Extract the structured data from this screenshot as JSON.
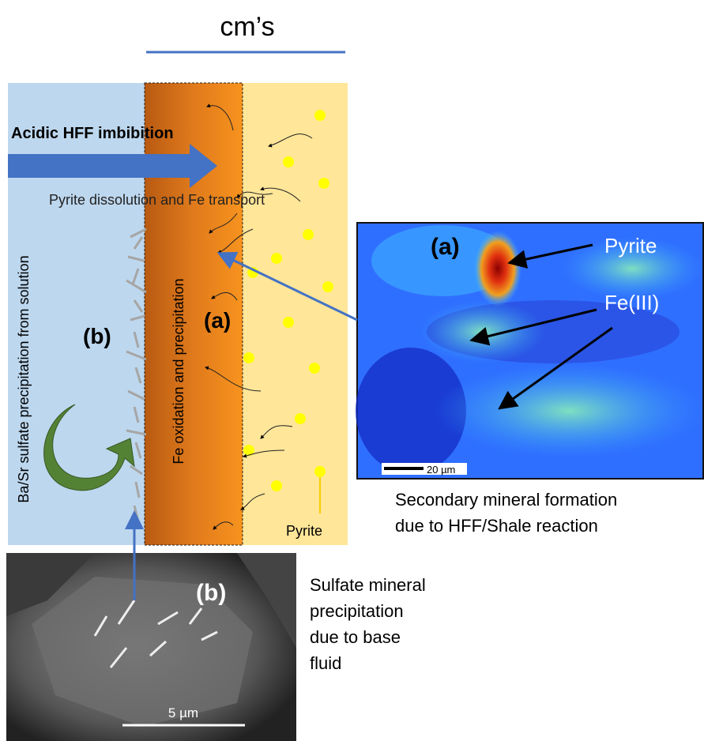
{
  "scale_label": "cm’s",
  "diagram": {
    "inflow_label": "Acidic HFF imbibition",
    "transport_label": "Pyrite dissolution and Fe transport",
    "left_zone_label": "Ba/Sr sulfate precipitation from solution",
    "middle_zone_label": "Fe oxidation and precipitation",
    "marker_a": "(a)",
    "marker_b": "(b)",
    "pyrite_label": "Pyrite"
  },
  "map_image": {
    "marker": "(a)",
    "pyrite_label": "Pyrite",
    "fe_label": "Fe(III)",
    "scale_bar": "20 µm",
    "caption": [
      "Secondary mineral formation",
      "due to HFF/Shale reaction"
    ]
  },
  "sem_image": {
    "marker": "(b)",
    "scale_bar": "5 µm",
    "caption": [
      "Sulfate mineral",
      "precipitation",
      "due to base",
      "fluid"
    ]
  }
}
